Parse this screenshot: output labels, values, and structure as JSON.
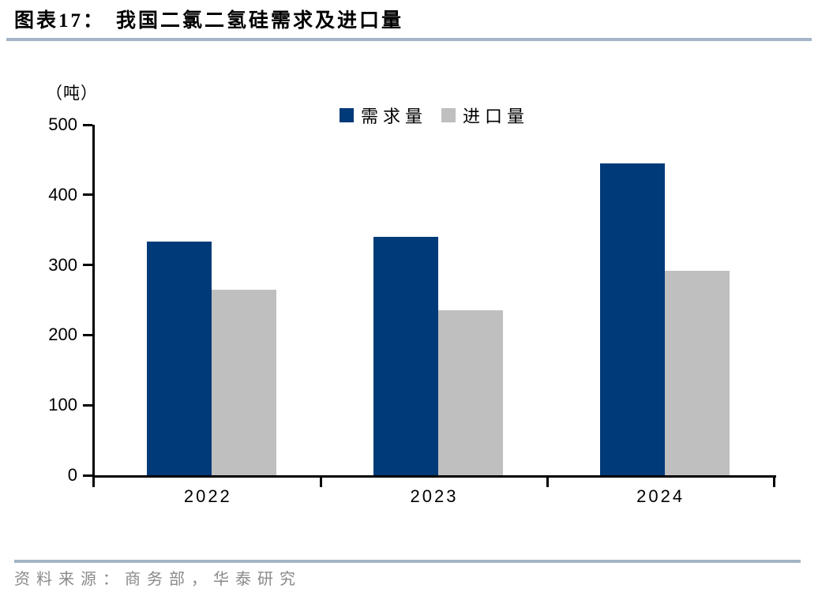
{
  "header": {
    "figure_label": "图表17：",
    "title": "我国二氯二氢硅需求及进口量"
  },
  "footer": {
    "source": "资料来源：商务部，华泰研究"
  },
  "colors": {
    "accent_rule": "#a3b5c7",
    "axis": "#000000",
    "source_text": "#8a8a8a",
    "demand_blue": "#003a78",
    "import_gray": "#bfbfbf"
  },
  "chart_data": {
    "type": "bar",
    "title": "我国二氯二氢硅需求及进口量",
    "unit_label": "（吨）",
    "xlabel": "",
    "ylabel": "（吨）",
    "categories": [
      "2022",
      "2023",
      "2024"
    ],
    "series": [
      {
        "key": "demand",
        "name": "需求量",
        "color": "#003a78",
        "values": [
          333,
          340,
          445
        ]
      },
      {
        "key": "import",
        "name": "进口量",
        "color": "#bfbfbf",
        "values": [
          265,
          235,
          292
        ]
      }
    ],
    "ylim": [
      0,
      500
    ],
    "yticks": [
      0,
      100,
      200,
      300,
      400,
      500
    ],
    "grid": false,
    "legend_position": "top-center"
  }
}
